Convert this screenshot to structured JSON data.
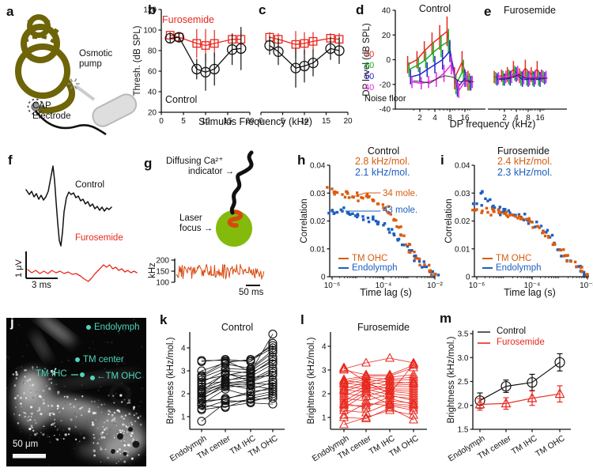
{
  "colors": {
    "black": "#111111",
    "red": "#e8281e",
    "orange": "#d95c0e",
    "blue": "#1d5ec0",
    "dblue": "#2424cc",
    "green": "#14b022",
    "magenta": "#e524e5",
    "olive": "#6e6408",
    "cyan": "#4fd6ba",
    "pump_gray": "#dedede"
  },
  "panels": {
    "a": {
      "letter": "a",
      "pump_label": "Osmotic pump",
      "electrode_label": "CAP Electrode"
    },
    "b": {
      "letter": "b",
      "furosemide_label": "Furosemide",
      "control_label": "Control",
      "ylabel": "Thresh. (dB SPL)",
      "yticks": [
        20,
        40,
        60,
        80,
        100,
        120
      ],
      "xticks": [
        0,
        5,
        10,
        15,
        20
      ],
      "x": [
        2,
        4,
        8,
        10,
        12,
        16,
        18
      ],
      "furosemide": {
        "y": [
          95,
          93,
          87,
          85,
          87,
          91,
          91
        ],
        "err": [
          3,
          4,
          14,
          16,
          13,
          6,
          6
        ]
      },
      "control": {
        "y": [
          92,
          93,
          62,
          59,
          62,
          81,
          82
        ],
        "err": [
          5,
          5,
          10,
          18,
          16,
          15,
          21
        ]
      }
    },
    "c": {
      "letter": "c",
      "xticks": [
        0,
        5,
        10,
        15,
        20
      ],
      "x": [
        2,
        4,
        8,
        10,
        12,
        16,
        18
      ],
      "furosemide": {
        "y": [
          93,
          91,
          86,
          87,
          89,
          92,
          91
        ],
        "err": [
          5,
          6,
          13,
          11,
          9,
          5,
          6
        ]
      },
      "control": {
        "y": [
          85,
          79,
          63,
          65,
          68,
          82,
          80
        ],
        "err": [
          9,
          13,
          19,
          16,
          13,
          11,
          13
        ]
      }
    },
    "bc_xlabel": "Stimulus Frequency (kHz)",
    "d": {
      "letter": "d",
      "title": "Control",
      "ylabel": "DP level (dB SPL)",
      "yticks": [
        -40,
        -20,
        0,
        20,
        40
      ],
      "xticks": [
        2,
        4,
        8,
        16
      ],
      "levels": [
        "70",
        "60",
        "50",
        "40"
      ],
      "noise_label": "Noise floor",
      "x": [
        1.3,
        2,
        2.8,
        4,
        5.7,
        8,
        11.3,
        16,
        21
      ],
      "series": [
        {
          "label": "70",
          "color": "red",
          "y": [
            -4,
            0,
            7,
            13,
            18,
            23,
            -15,
            -2,
            -17
          ],
          "err": [
            7,
            7,
            8,
            9,
            10,
            12,
            9,
            9,
            8
          ]
        },
        {
          "label": "60",
          "color": "green",
          "y": [
            -8,
            -4,
            0,
            6,
            11,
            15,
            -20,
            -8,
            -18
          ],
          "err": [
            6,
            6,
            7,
            8,
            9,
            10,
            8,
            8,
            7
          ]
        },
        {
          "label": "50",
          "color": "dblue",
          "y": [
            -14,
            -12,
            -8,
            -4,
            0,
            7,
            -23,
            -15,
            -19
          ],
          "err": [
            6,
            6,
            6,
            7,
            8,
            9,
            7,
            7,
            6
          ]
        },
        {
          "label": "40",
          "color": "magenta",
          "y": [
            -18,
            -19,
            -18,
            -16,
            -11,
            -4,
            -25,
            -16,
            -18
          ],
          "err": [
            5,
            5,
            5,
            6,
            7,
            8,
            6,
            6,
            5
          ]
        },
        {
          "label": "Noise floor",
          "color": "black",
          "y": [
            -17,
            -18,
            -19,
            -15,
            -13,
            -14,
            -18,
            -17,
            -18
          ],
          "err": null
        }
      ]
    },
    "e": {
      "letter": "e",
      "title": "Furosemide",
      "xticks": [
        2,
        4,
        8,
        16
      ],
      "x": [
        1.3,
        2,
        2.8,
        4,
        5.7,
        8,
        11.3,
        16,
        21
      ],
      "series": [
        {
          "label": "70",
          "color": "red",
          "y": [
            -14,
            -13,
            -12,
            -8,
            -13,
            -7,
            -12,
            -8,
            -13
          ],
          "err": [
            5,
            5,
            6,
            7,
            6,
            7,
            6,
            7,
            5
          ]
        },
        {
          "label": "60",
          "color": "green",
          "y": [
            -15,
            -15,
            -14,
            -11,
            -15,
            -15,
            -15,
            -15,
            -14
          ],
          "err": [
            5,
            6,
            6,
            6,
            6,
            6,
            6,
            6,
            5
          ]
        },
        {
          "label": "50",
          "color": "dblue",
          "y": [
            -16,
            -16,
            -15,
            -12,
            -16,
            -16,
            -16,
            -16,
            -15
          ],
          "err": [
            5,
            5,
            6,
            6,
            6,
            6,
            6,
            6,
            5
          ]
        },
        {
          "label": "40",
          "color": "magenta",
          "y": [
            -15,
            -14,
            -14,
            -11,
            -14,
            -15,
            -14,
            -13,
            -14
          ],
          "err": [
            5,
            5,
            5,
            6,
            6,
            6,
            6,
            5,
            5
          ]
        },
        {
          "label": "Noise floor",
          "color": "black",
          "y": [
            -15,
            -15,
            -14,
            -12,
            -15,
            -15,
            -15,
            -15,
            -15
          ],
          "err": null
        }
      ]
    },
    "de_xlabel": "DP frequency (kHz)",
    "f": {
      "letter": "f",
      "control_label": "Control",
      "furosemide_label": "Furosemide",
      "vscale": "1 μV",
      "hscale": "3 ms",
      "control_trace": [
        [
          0,
          16
        ],
        [
          4,
          10
        ],
        [
          7,
          14
        ],
        [
          10,
          7
        ],
        [
          13,
          11
        ],
        [
          16,
          4
        ],
        [
          19,
          9
        ],
        [
          22,
          3
        ],
        [
          25,
          7
        ],
        [
          28,
          14
        ],
        [
          31,
          30
        ],
        [
          34,
          46
        ],
        [
          36,
          28
        ],
        [
          38,
          0
        ],
        [
          40,
          -26
        ],
        [
          42,
          -48
        ],
        [
          44,
          -55
        ],
        [
          46,
          -38
        ],
        [
          48,
          -12
        ],
        [
          51,
          6
        ],
        [
          54,
          13
        ],
        [
          57,
          10
        ],
        [
          60,
          12
        ],
        [
          63,
          6
        ],
        [
          66,
          8
        ],
        [
          69,
          2
        ],
        [
          72,
          4
        ],
        [
          75,
          -2
        ],
        [
          78,
          1
        ],
        [
          81,
          -5
        ],
        [
          84,
          -2
        ],
        [
          87,
          -8
        ],
        [
          90,
          -5
        ],
        [
          93,
          -10
        ],
        [
          96,
          -6
        ],
        [
          99,
          -11
        ],
        [
          102,
          -7
        ],
        [
          105,
          -9
        ],
        [
          108,
          -6
        ]
      ],
      "furosemide_trace": [
        [
          0,
          3
        ],
        [
          4,
          -1
        ],
        [
          8,
          2
        ],
        [
          12,
          -2
        ],
        [
          16,
          1
        ],
        [
          20,
          -2
        ],
        [
          24,
          2
        ],
        [
          28,
          -1
        ],
        [
          32,
          1
        ],
        [
          36,
          -2
        ],
        [
          40,
          0
        ],
        [
          44,
          -3
        ],
        [
          48,
          -2
        ],
        [
          52,
          -5
        ],
        [
          56,
          -9
        ],
        [
          60,
          -12
        ],
        [
          63,
          -8
        ],
        [
          66,
          -3
        ],
        [
          69,
          1
        ],
        [
          72,
          5
        ],
        [
          75,
          9
        ],
        [
          78,
          6
        ],
        [
          81,
          9
        ],
        [
          84,
          4
        ],
        [
          87,
          6
        ],
        [
          90,
          2
        ],
        [
          93,
          4
        ],
        [
          96,
          0
        ],
        [
          99,
          2
        ],
        [
          102,
          -1
        ],
        [
          105,
          1
        ],
        [
          108,
          -1
        ]
      ]
    },
    "g": {
      "letter": "g",
      "indicator_line1": "Diffusing Ca²⁺",
      "indicator_line2": "indicator →",
      "laser_line1": "Laser",
      "laser_line2": "focus →",
      "unit": "kHz",
      "yticks": [
        100,
        150,
        200
      ],
      "scale": "50 ms",
      "trace_mean_khz": 150,
      "trace_spread_khz": 38
    },
    "h": {
      "letter": "h",
      "title": "Control",
      "rate_tmohc": "2.8 kHz/mol.",
      "rate_endolymph": "2.1 kHz/mol.",
      "ann_tmohc": "34 mole.",
      "ann_endolymph": "43 mole.",
      "ylabel": "Correlation",
      "xlabel": "Time lag (s)",
      "yticks": [
        0,
        0.01,
        0.02,
        0.03,
        0.04
      ],
      "xtick_labels": [
        "10⁻⁶",
        "10⁻⁴",
        "10⁻²"
      ],
      "legend_tmohc": "TM OHC",
      "legend_endolymph": "Endolymph",
      "x_log10": [
        -6,
        -5.8,
        -5.6,
        -5.4,
        -5.2,
        -5,
        -4.8,
        -4.6,
        -4.4,
        -4.2,
        -4,
        -3.8,
        -3.6,
        -3.4,
        -3.2,
        -3,
        -2.8,
        -2.6,
        -2.4,
        -2.2,
        -2
      ],
      "tmohc": {
        "y": [
          0.0315,
          0.0302,
          0.0295,
          0.03,
          0.0287,
          0.0291,
          0.0282,
          0.0285,
          0.0272,
          0.0261,
          0.0247,
          0.0228,
          0.0203,
          0.0177,
          0.0147,
          0.0117,
          0.0089,
          0.0064,
          0.0043,
          0.0021,
          0.0008
        ]
      },
      "endolymph": {
        "y": [
          0.0236,
          0.0231,
          0.0235,
          0.0229,
          0.0226,
          0.0221,
          0.0216,
          0.0211,
          0.0206,
          0.0196,
          0.0185,
          0.017,
          0.0154,
          0.0135,
          0.0114,
          0.0094,
          0.0074,
          0.0055,
          0.0036,
          0.0018,
          0.0006
        ]
      }
    },
    "i": {
      "letter": "i",
      "title": "Furosemide",
      "rate_tmohc": "2.4 kHz/mol.",
      "rate_endolymph": "2.3 kHz/mol.",
      "ylabel": "Correlation",
      "xlabel": "Time lag (s)",
      "yticks": [
        0,
        0.01,
        0.02,
        0.03,
        0.04
      ],
      "xtick_labels": [
        "10⁻⁶",
        "10⁻⁴",
        "10⁻²"
      ],
      "legend_tmohc": "TM OHC",
      "legend_endolymph": "Endolymph",
      "x_log10": [
        -6,
        -5.8,
        -5.6,
        -5.4,
        -5.2,
        -5,
        -4.8,
        -4.6,
        -4.4,
        -4.2,
        -4,
        -3.8,
        -3.6,
        -3.4,
        -3.2,
        -3,
        -2.8,
        -2.6,
        -2.4,
        -2.2,
        -2
      ],
      "tmohc": {
        "y": [
          0.0241,
          0.0236,
          0.0231,
          0.0236,
          0.0229,
          0.0226,
          0.0221,
          0.0216,
          0.0211,
          0.0206,
          0.0196,
          0.0181,
          0.0161,
          0.0141,
          0.0119,
          0.0096,
          0.0075,
          0.0055,
          0.0035,
          0.0018,
          0.0007
        ]
      },
      "endolymph": {
        "y": [
          0.0262,
          0.0306,
          0.0272,
          0.0254,
          0.0241,
          0.0234,
          0.0229,
          0.0221,
          0.0214,
          0.0206,
          0.0196,
          0.0181,
          0.0164,
          0.0144,
          0.0121,
          0.0097,
          0.0076,
          0.0056,
          0.0036,
          0.0018,
          0.0007
        ]
      }
    },
    "j": {
      "letter": "j",
      "label_endolymph": "Endolymph",
      "label_tm_center": "TM center",
      "label_tm_ihc": "TM IHC",
      "label_tm_ohc": "←TM OHC",
      "scale": "50 μm"
    },
    "k": {
      "letter": "k",
      "title": "Control",
      "ylabel": "Brightness (kHz/mol.)",
      "yticks": [
        1,
        2,
        3,
        4
      ],
      "categories": [
        "Endolymph",
        "TM center",
        "TM IHC",
        "TM OHC"
      ],
      "subjects": [
        [
          0.8,
          1.6,
          1.75,
          1.8
        ],
        [
          1.3,
          1.45,
          1.6,
          1.55
        ],
        [
          1.35,
          1.7,
          1.65,
          1.9
        ],
        [
          1.5,
          1.4,
          1.8,
          2.0
        ],
        [
          1.55,
          2.2,
          1.9,
          2.1
        ],
        [
          1.6,
          1.8,
          2.0,
          2.3
        ],
        [
          1.7,
          1.75,
          2.1,
          2.2
        ],
        [
          1.75,
          2.4,
          2.2,
          2.5
        ],
        [
          1.8,
          2.3,
          2.35,
          2.2
        ],
        [
          1.9,
          2.45,
          2.4,
          2.6
        ],
        [
          2.0,
          2.35,
          2.45,
          2.4
        ],
        [
          2.05,
          2.5,
          2.5,
          2.9
        ],
        [
          2.1,
          2.9,
          2.55,
          3.0
        ],
        [
          2.15,
          2.45,
          2.6,
          3.1
        ],
        [
          2.2,
          2.6,
          2.7,
          2.8
        ],
        [
          2.3,
          2.85,
          2.75,
          3.3
        ],
        [
          2.4,
          2.55,
          2.85,
          3.5
        ],
        [
          2.5,
          3.0,
          2.9,
          3.4
        ],
        [
          2.6,
          2.8,
          3.0,
          3.6
        ],
        [
          2.7,
          3.1,
          3.05,
          3.8
        ],
        [
          2.75,
          3.3,
          3.1,
          3.9
        ],
        [
          2.8,
          3.4,
          3.45,
          4.0
        ],
        [
          3.0,
          3.35,
          3.5,
          4.1
        ],
        [
          3.4,
          3.5,
          3.4,
          4.2
        ],
        [
          3.45,
          3.45,
          2.95,
          4.6
        ]
      ]
    },
    "l": {
      "letter": "l",
      "title": "Furosemide",
      "ylabel": "Brightness (kHz/mol.)",
      "yticks": [
        1,
        2,
        3,
        4
      ],
      "categories": [
        "Endolymph",
        "TM center",
        "TM IHC",
        "TM OHC"
      ],
      "subjects": [
        [
          0.7,
          1.0,
          1.3,
          1.1
        ],
        [
          1.0,
          0.95,
          1.4,
          0.9
        ],
        [
          1.1,
          1.6,
          1.5,
          1.3
        ],
        [
          1.3,
          1.2,
          1.6,
          1.5
        ],
        [
          1.4,
          2.0,
          1.55,
          1.4
        ],
        [
          1.5,
          1.5,
          1.7,
          1.6
        ],
        [
          1.55,
          2.1,
          1.8,
          1.55
        ],
        [
          1.6,
          1.4,
          1.9,
          1.8
        ],
        [
          1.7,
          2.2,
          1.95,
          1.7
        ],
        [
          1.8,
          1.7,
          2.0,
          1.9
        ],
        [
          1.9,
          2.3,
          2.1,
          2.0
        ],
        [
          2.0,
          1.9,
          2.15,
          2.1
        ],
        [
          2.1,
          2.4,
          2.2,
          2.2
        ],
        [
          2.15,
          2.1,
          2.3,
          2.3
        ],
        [
          2.2,
          2.5,
          2.35,
          2.4
        ],
        [
          2.3,
          2.2,
          2.4,
          2.5
        ],
        [
          2.4,
          2.6,
          2.5,
          2.45
        ],
        [
          2.45,
          2.35,
          2.55,
          2.6
        ],
        [
          2.5,
          2.7,
          2.6,
          2.7
        ],
        [
          2.55,
          2.45,
          2.7,
          2.8
        ],
        [
          2.6,
          2.75,
          2.75,
          3.1
        ],
        [
          3.0,
          2.8,
          2.8,
          3.2
        ],
        [
          3.05,
          3.3,
          3.5,
          3.3
        ],
        [
          3.1,
          2.5,
          2.0,
          3.25
        ]
      ]
    },
    "m": {
      "letter": "m",
      "ylabel": "Brightness (kHz/mol.)",
      "yticks": [
        1.5,
        2.0,
        2.5,
        3.0,
        3.5
      ],
      "categories": [
        "Endolymph",
        "TM center",
        "TM IHC",
        "TM OHC"
      ],
      "control": {
        "label": "Control",
        "y": [
          2.1,
          2.4,
          2.48,
          2.9
        ],
        "err": [
          0.16,
          0.13,
          0.17,
          0.18
        ]
      },
      "furosemide": {
        "label": "Furosemide",
        "y": [
          2.02,
          2.04,
          2.15,
          2.24
        ],
        "err": [
          0.12,
          0.12,
          0.15,
          0.17
        ]
      }
    }
  }
}
